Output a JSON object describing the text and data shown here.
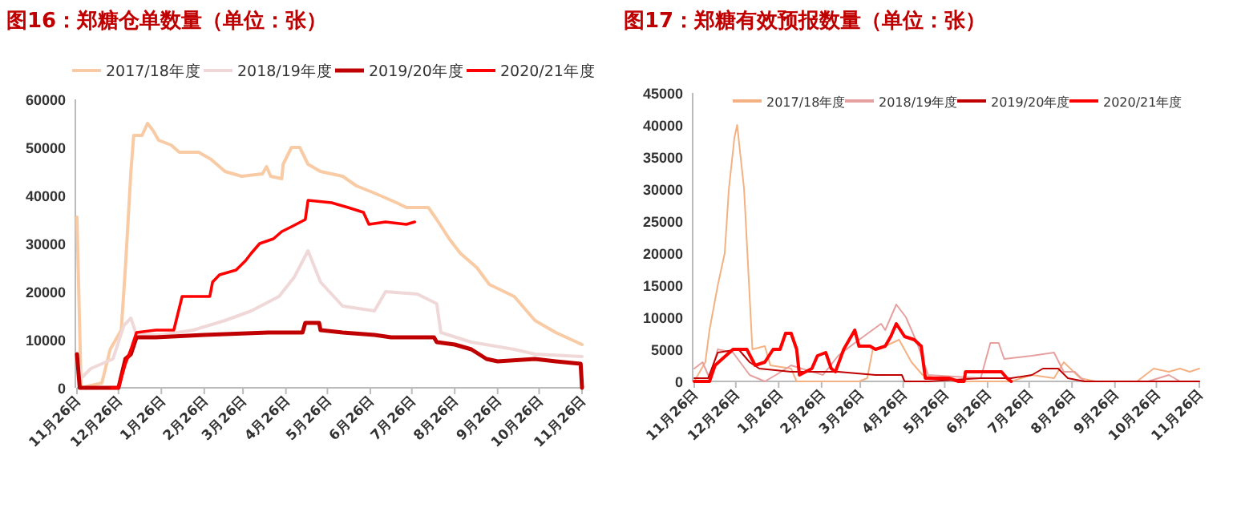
{
  "chart_data": [
    {
      "type": "line",
      "title": "图16：郑糖仓单数量（单位：张）",
      "xlim": [
        "2020-11-26",
        "2021-11-26"
      ],
      "xticks": [
        {
          "value": "2020-11-26",
          "label": "11月26日"
        },
        {
          "value": "2020-12-26",
          "label": "12月26日"
        },
        {
          "value": "2021-01-26",
          "label": "1月26日"
        },
        {
          "value": "2021-02-26",
          "label": "2月26日"
        },
        {
          "value": "2021-03-26",
          "label": "3月26日"
        },
        {
          "value": "2021-04-26",
          "label": "4月26日"
        },
        {
          "value": "2021-05-26",
          "label": "5月26日"
        },
        {
          "value": "2021-06-26",
          "label": "6月26日"
        },
        {
          "value": "2021-07-26",
          "label": "7月26日"
        },
        {
          "value": "2021-08-26",
          "label": "8月26日"
        },
        {
          "value": "2021-09-26",
          "label": "9月26日"
        },
        {
          "value": "2021-10-26",
          "label": "10月26日"
        },
        {
          "value": "2021-11-26",
          "label": "11月26日"
        }
      ],
      "ylim": [
        0,
        60000
      ],
      "yticks": [
        0,
        10000,
        20000,
        30000,
        40000,
        50000,
        60000
      ],
      "legend": "top",
      "grid": false,
      "series": [
        {
          "name": "2017/18年度",
          "color": "#f8cba4",
          "x": [
            "2020-11-26",
            "2020-11-29",
            "2020-12-14",
            "2020-12-20",
            "2020-12-28",
            "2020-12-31",
            "2021-01-04",
            "2021-01-06",
            "2021-01-12",
            "2021-01-16",
            "2021-01-20",
            "2021-01-24",
            "2021-02-02",
            "2021-02-08",
            "2021-02-22",
            "2021-03-03",
            "2021-03-13",
            "2021-03-25",
            "2021-04-09",
            "2021-04-12",
            "2021-04-15",
            "2021-04-23",
            "2021-04-24",
            "2021-04-30",
            "2021-05-06",
            "2021-05-12",
            "2021-05-21",
            "2021-06-06",
            "2021-06-16",
            "2021-06-29",
            "2021-07-15",
            "2021-07-22",
            "2021-08-07",
            "2021-08-13",
            "2021-08-22",
            "2021-08-30",
            "2021-09-11",
            "2021-09-20",
            "2021-10-08",
            "2021-10-23",
            "2021-11-07",
            "2021-11-26"
          ],
          "values": [
            35500,
            0,
            1000,
            8000,
            12000,
            25000,
            45000,
            52500,
            52500,
            55000,
            53500,
            51500,
            50500,
            49000,
            49000,
            47500,
            45000,
            44000,
            44500,
            46000,
            44000,
            43500,
            46500,
            50000,
            50000,
            46500,
            45000,
            44000,
            42000,
            40500,
            38500,
            37500,
            37500,
            35000,
            31000,
            28000,
            25000,
            21500,
            19000,
            14000,
            11500,
            9000
          ]
        },
        {
          "name": "2018/19年度",
          "color": "#f0d8d8",
          "x": [
            "2020-11-26",
            "2020-11-29",
            "2020-12-06",
            "2020-12-22",
            "2020-12-30",
            "2021-01-04",
            "2021-01-08",
            "2021-01-26",
            "2021-02-18",
            "2021-03-13",
            "2021-04-01",
            "2021-04-21",
            "2021-05-02",
            "2021-05-12",
            "2021-05-21",
            "2021-06-06",
            "2021-06-29",
            "2021-07-07",
            "2021-07-30",
            "2021-08-13",
            "2021-08-16",
            "2021-09-07",
            "2021-10-08",
            "2021-10-23",
            "2021-11-26"
          ],
          "values": [
            7000,
            2000,
            4000,
            6000,
            13000,
            14500,
            11000,
            11000,
            12000,
            14000,
            16000,
            19000,
            23000,
            28500,
            22000,
            17000,
            16000,
            20000,
            19500,
            17500,
            11500,
            9500,
            8000,
            7000,
            6500
          ]
        },
        {
          "name": "2019/20年度",
          "color": "#c00000",
          "x": [
            "2020-11-26",
            "2020-11-28",
            "2020-12-26",
            "2020-12-31",
            "2021-01-04",
            "2021-01-08",
            "2021-01-22",
            "2021-02-26",
            "2021-04-13",
            "2021-05-08",
            "2021-05-10",
            "2021-05-20",
            "2021-05-21",
            "2021-06-06",
            "2021-06-29",
            "2021-07-11",
            "2021-08-11",
            "2021-08-13",
            "2021-08-26",
            "2021-09-07",
            "2021-09-18",
            "2021-09-26",
            "2021-10-23",
            "2021-11-07",
            "2021-11-25",
            "2021-11-26"
          ],
          "values": [
            7000,
            0,
            0,
            6000,
            7000,
            10500,
            10500,
            11000,
            11500,
            11500,
            13500,
            13500,
            12000,
            11500,
            11000,
            10500,
            10500,
            9500,
            9000,
            8000,
            6000,
            5500,
            6000,
            5500,
            5000,
            0
          ]
        },
        {
          "name": "2020/21年度",
          "color": "#ff0000",
          "x": [
            "2020-12-21",
            "2020-12-26",
            "2020-12-31",
            "2021-01-04",
            "2021-01-08",
            "2021-01-22",
            "2021-02-04",
            "2021-02-10",
            "2021-03-02",
            "2021-03-04",
            "2021-03-09",
            "2021-03-21",
            "2021-03-28",
            "2021-04-01",
            "2021-04-07",
            "2021-04-17",
            "2021-04-23",
            "2021-04-30",
            "2021-05-10",
            "2021-05-12",
            "2021-05-29",
            "2021-06-10",
            "2021-06-21",
            "2021-06-25",
            "2021-07-07",
            "2021-07-22",
            "2021-07-28"
          ],
          "values": [
            0,
            0,
            5000,
            8000,
            11500,
            12000,
            12000,
            19000,
            19000,
            22000,
            23500,
            24500,
            26500,
            28000,
            30000,
            31000,
            32500,
            33500,
            35000,
            39000,
            38500,
            37500,
            36500,
            34000,
            34500,
            34000,
            34500
          ]
        }
      ]
    },
    {
      "type": "line",
      "title": "图17：郑糖有效预报数量（单位：张）",
      "xlim": [
        "2020-11-26",
        "2021-11-26"
      ],
      "xticks": [
        {
          "value": "2020-11-26",
          "label": "11月26日"
        },
        {
          "value": "2020-12-26",
          "label": "12月26日"
        },
        {
          "value": "2021-01-26",
          "label": "1月26日"
        },
        {
          "value": "2021-02-26",
          "label": "2月26日"
        },
        {
          "value": "2021-03-26",
          "label": "3月26日"
        },
        {
          "value": "2021-04-26",
          "label": "4月26日"
        },
        {
          "value": "2021-05-26",
          "label": "5月26日"
        },
        {
          "value": "2021-06-26",
          "label": "6月26日"
        },
        {
          "value": "2021-07-26",
          "label": "7月26日"
        },
        {
          "value": "2021-08-26",
          "label": "8月26日"
        },
        {
          "value": "2021-09-26",
          "label": "9月26日"
        },
        {
          "value": "2021-10-26",
          "label": "10月26日"
        },
        {
          "value": "2021-11-26",
          "label": "11月26日"
        }
      ],
      "ylim": [
        0,
        45000
      ],
      "yticks": [
        0,
        5000,
        10000,
        15000,
        20000,
        25000,
        30000,
        35000,
        40000,
        45000
      ],
      "legend": "top",
      "grid": false,
      "series": [
        {
          "name": "2017/18年度",
          "color": "#f4b183",
          "x": [
            "2020-11-26",
            "2020-12-04",
            "2020-12-07",
            "2020-12-13",
            "2020-12-18",
            "2020-12-21",
            "2020-12-25",
            "2020-12-27",
            "2021-01-01",
            "2021-01-07",
            "2021-01-16",
            "2021-01-20",
            "2021-02-04",
            "2021-02-08",
            "2021-03-25",
            "2021-03-31",
            "2021-04-04",
            "2021-04-13",
            "2021-04-23",
            "2021-05-02",
            "2021-05-10",
            "2021-05-21",
            "2021-06-05",
            "2021-07-13",
            "2021-07-28",
            "2021-08-13",
            "2021-08-20",
            "2021-09-01",
            "2021-09-12",
            "2021-10-12",
            "2021-10-24",
            "2021-11-04",
            "2021-11-12",
            "2021-11-19",
            "2021-11-26"
          ],
          "values": [
            0,
            3000,
            8000,
            15000,
            20000,
            30000,
            38000,
            40000,
            30000,
            5000,
            5500,
            2500,
            2000,
            0,
            0,
            500,
            5000,
            5500,
            6500,
            3000,
            1000,
            500,
            0,
            0,
            1000,
            500,
            3000,
            500,
            0,
            0,
            2000,
            1500,
            2000,
            1500,
            2000
          ]
        },
        {
          "name": "2018/19年度",
          "color": "#e6a0a0",
          "x": [
            "2020-11-26",
            "2020-12-02",
            "2020-12-07",
            "2020-12-13",
            "2020-12-24",
            "2021-01-05",
            "2021-01-16",
            "2021-01-24",
            "2021-02-04",
            "2021-02-27",
            "2021-03-10",
            "2021-03-22",
            "2021-04-10",
            "2021-04-13",
            "2021-04-21",
            "2021-04-28",
            "2021-05-06",
            "2021-05-14",
            "2021-06-21",
            "2021-06-28",
            "2021-07-04",
            "2021-07-08",
            "2021-07-28",
            "2021-08-13",
            "2021-08-20",
            "2021-08-28",
            "2021-09-04",
            "2021-10-20",
            "2021-11-04",
            "2021-11-12",
            "2021-11-26"
          ],
          "values": [
            2000,
            3000,
            500,
            5000,
            4500,
            1000,
            0,
            1000,
            2500,
            1000,
            4000,
            6000,
            9000,
            8000,
            12000,
            10000,
            6000,
            1000,
            500,
            6000,
            6000,
            3500,
            4000,
            4500,
            1500,
            1500,
            0,
            0,
            1000,
            0,
            0
          ]
        },
        {
          "name": "2019/20年度",
          "color": "#c00000",
          "x": [
            "2020-11-26",
            "2020-12-06",
            "2020-12-13",
            "2020-12-28",
            "2021-01-05",
            "2021-01-12",
            "2021-02-04",
            "2021-03-10",
            "2021-04-06",
            "2021-04-25",
            "2021-04-27",
            "2021-05-14",
            "2021-06-21",
            "2021-07-13",
            "2021-07-28",
            "2021-08-05",
            "2021-08-16",
            "2021-08-23",
            "2021-09-04",
            "2021-11-26"
          ],
          "values": [
            500,
            500,
            4500,
            5000,
            3000,
            2000,
            1500,
            1500,
            1000,
            1000,
            0,
            0,
            500,
            500,
            1000,
            2000,
            2000,
            500,
            0,
            0
          ]
        },
        {
          "name": "2020/21年度",
          "color": "#ff0000",
          "x": [
            "2020-11-26",
            "2020-12-07",
            "2020-12-11",
            "2020-12-24",
            "2021-01-03",
            "2021-01-09",
            "2021-01-16",
            "2021-01-22",
            "2021-01-27",
            "2021-01-31",
            "2021-02-04",
            "2021-02-08",
            "2021-02-10",
            "2021-02-19",
            "2021-02-23",
            "2021-03-01",
            "2021-03-05",
            "2021-03-08",
            "2021-03-14",
            "2021-03-22",
            "2021-03-25",
            "2021-04-02",
            "2021-04-06",
            "2021-04-13",
            "2021-04-17",
            "2021-04-21",
            "2021-04-27",
            "2021-05-04",
            "2021-05-09",
            "2021-05-12",
            "2021-05-29",
            "2021-06-05",
            "2021-06-09",
            "2021-06-10",
            "2021-07-06",
            "2021-07-10",
            "2021-07-13"
          ],
          "values": [
            0,
            0,
            2500,
            5000,
            5000,
            2500,
            3000,
            5000,
            5000,
            7500,
            7500,
            5000,
            1000,
            2000,
            4000,
            4500,
            2000,
            1500,
            5000,
            8000,
            5500,
            5500,
            5000,
            5500,
            7000,
            9000,
            7000,
            6500,
            5500,
            500,
            500,
            0,
            0,
            1500,
            1500,
            500,
            0
          ]
        }
      ]
    }
  ]
}
